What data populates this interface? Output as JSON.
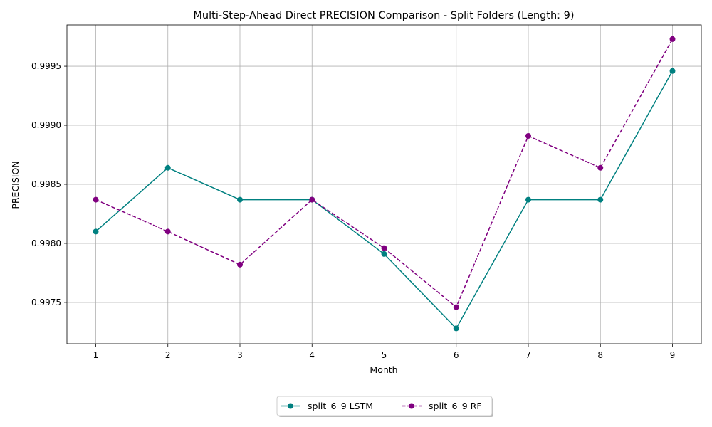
{
  "chart_data": {
    "type": "line",
    "title": "Multi-Step-Ahead Direct PRECISION Comparison - Split Folders (Length: 9)",
    "xlabel": "Month",
    "ylabel": "PRECISION",
    "x": [
      1,
      2,
      3,
      4,
      5,
      6,
      7,
      8,
      9
    ],
    "xlim": [
      0.6,
      9.4
    ],
    "ylim": [
      0.99715,
      0.99985
    ],
    "yticks": [
      "0.9975",
      "0.9980",
      "0.9985",
      "0.9990",
      "0.9995"
    ],
    "grid": true,
    "legend_position": "bottom-center, outside plot",
    "series": [
      {
        "name": "split_6_9 LSTM",
        "color": "#008080",
        "line_style": "solid",
        "marker": "circle",
        "values": [
          0.9981,
          0.99864,
          0.99837,
          0.99837,
          0.99791,
          0.99728,
          0.99837,
          0.99837,
          0.99946
        ]
      },
      {
        "name": "split_6_9 RF",
        "color": "#800080",
        "line_style": "dashed",
        "marker": "circle",
        "values": [
          0.99837,
          0.9981,
          0.99782,
          0.99837,
          0.99796,
          0.99746,
          0.99891,
          0.99864,
          0.99973
        ]
      }
    ]
  }
}
